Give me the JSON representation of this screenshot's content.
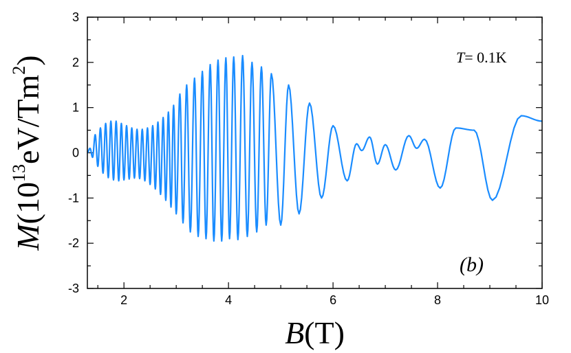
{
  "chart_data": {
    "type": "line",
    "title": "",
    "xlabel": {
      "symbol": "B",
      "unit": "(T)"
    },
    "ylabel": {
      "symbol": "M",
      "unit_prefix": "(10",
      "exponent": "13",
      "unit_main": "eV/Tm",
      "unit_power": "2",
      "unit_close": ")"
    },
    "xlim": [
      1.3,
      10
    ],
    "ylim": [
      -3,
      3
    ],
    "x_ticks": [
      "2",
      "4",
      "6",
      "8",
      "10"
    ],
    "y_ticks": [
      "-3",
      "-2",
      "-1",
      "0",
      "1",
      "2",
      "3"
    ],
    "grid": false,
    "series": [
      {
        "color": "#1a8cff",
        "description": "oscillating magnetization with beating envelope",
        "peaks_x": [
          1.35,
          1.45,
          1.55,
          1.65,
          1.75,
          1.85,
          1.95,
          2.05,
          2.15,
          2.25,
          2.35,
          2.45,
          2.55,
          2.65,
          2.75,
          2.85,
          2.95,
          3.07,
          3.2,
          3.35,
          3.5,
          3.65,
          3.8,
          3.95,
          4.1,
          4.27,
          4.45,
          4.63,
          4.82,
          5.15,
          5.55,
          6.0,
          6.45,
          6.7,
          7.0,
          7.45,
          7.75,
          8.35,
          8.7,
          9.6,
          10.0
        ],
        "peaks_y": [
          0.1,
          0.4,
          0.55,
          0.65,
          0.7,
          0.7,
          0.65,
          0.6,
          0.55,
          0.52,
          0.52,
          0.55,
          0.6,
          0.68,
          0.78,
          0.9,
          1.05,
          1.3,
          1.5,
          1.65,
          1.8,
          1.95,
          2.05,
          2.1,
          2.12,
          2.15,
          2.0,
          1.9,
          1.75,
          1.5,
          1.1,
          0.6,
          0.2,
          0.35,
          0.18,
          0.38,
          0.3,
          0.55,
          0.5,
          0.82,
          0.7
        ],
        "troughs_x": [
          1.4,
          1.5,
          1.6,
          1.7,
          1.8,
          1.9,
          2.0,
          2.1,
          2.2,
          2.3,
          2.4,
          2.5,
          2.6,
          2.7,
          2.8,
          2.9,
          3.0,
          3.13,
          3.27,
          3.42,
          3.57,
          3.72,
          3.87,
          4.02,
          4.18,
          4.36,
          4.54,
          4.72,
          5.0,
          5.35,
          5.78,
          6.27,
          6.55,
          6.85,
          7.2,
          7.6,
          8.05,
          9.05
        ],
        "troughs_y": [
          -0.1,
          -0.3,
          -0.45,
          -0.55,
          -0.6,
          -0.62,
          -0.6,
          -0.58,
          -0.56,
          -0.57,
          -0.62,
          -0.7,
          -0.8,
          -0.92,
          -1.05,
          -1.2,
          -1.35,
          -1.55,
          -1.75,
          -1.85,
          -1.9,
          -1.95,
          -1.95,
          -1.9,
          -1.92,
          -1.85,
          -1.75,
          -1.6,
          -1.6,
          -1.35,
          -1.0,
          -0.62,
          0.05,
          -0.25,
          -0.38,
          0.1,
          -0.78,
          -1.05
        ]
      }
    ],
    "annotations": [
      {
        "id": "temperature",
        "symbol": "T",
        "text": "= 0.1K"
      },
      {
        "id": "panel",
        "text": "(b)"
      }
    ]
  }
}
